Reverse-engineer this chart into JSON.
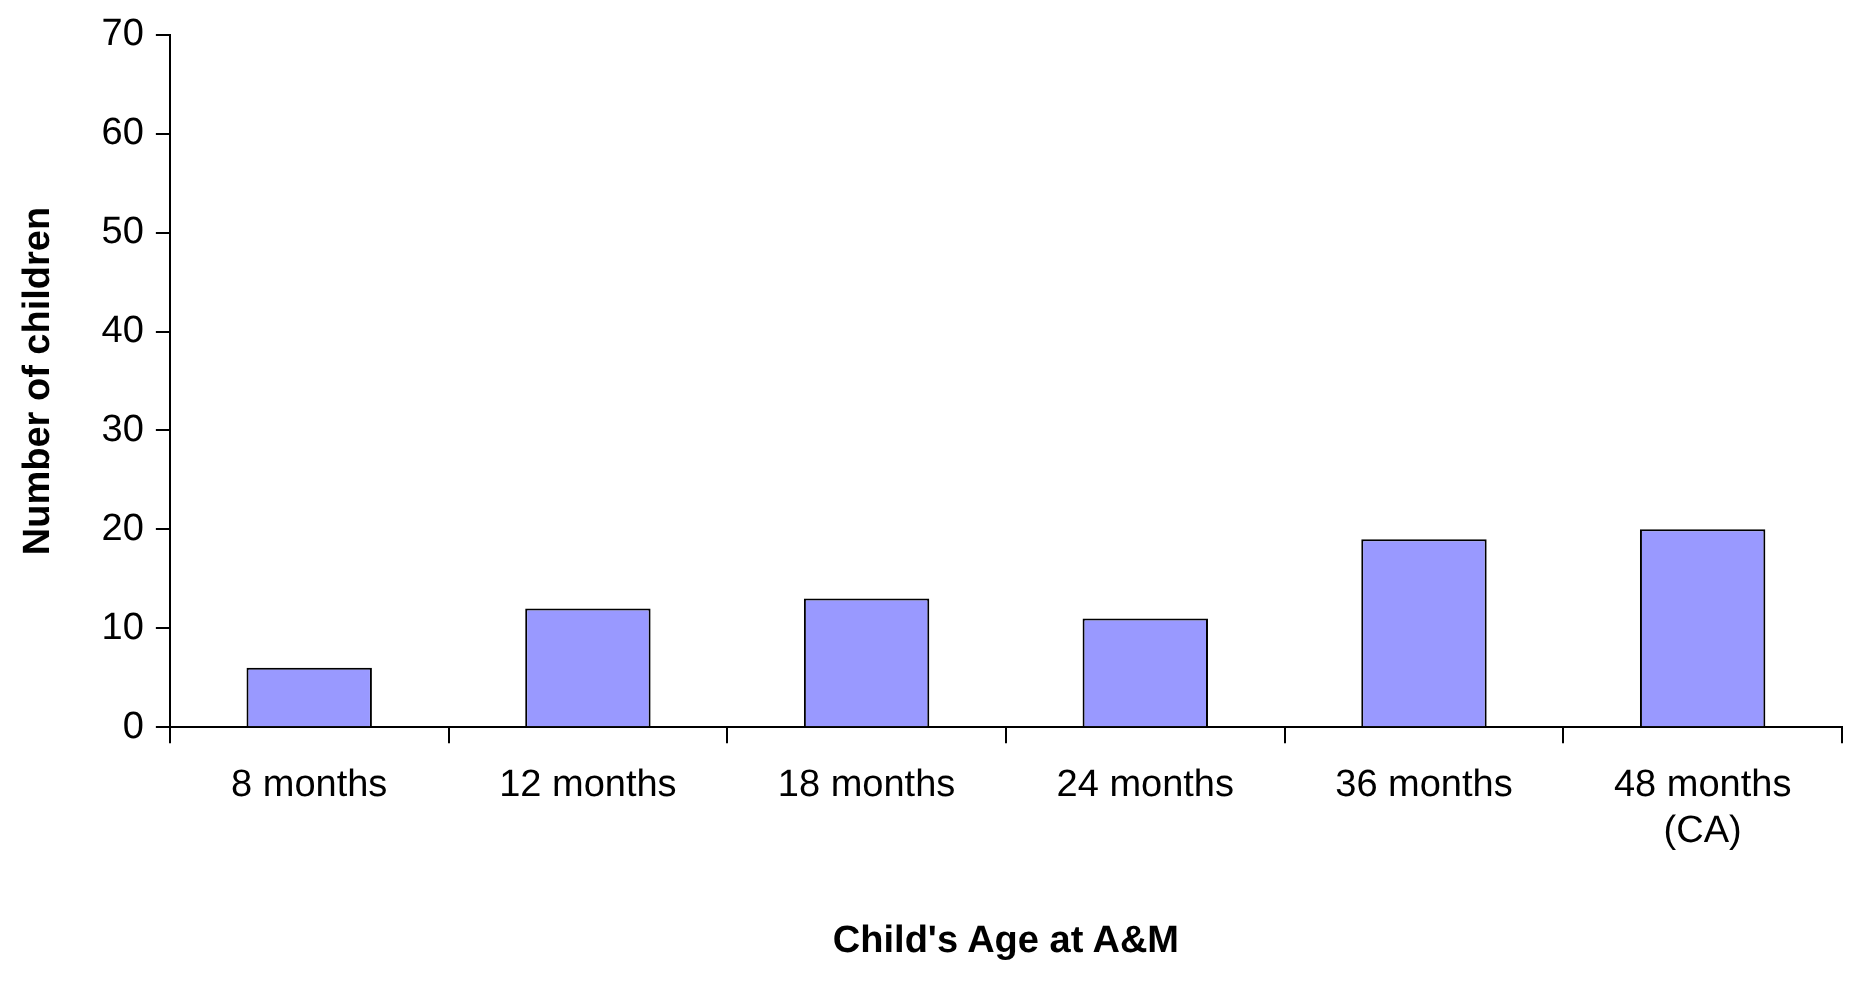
{
  "chart_data": {
    "type": "bar",
    "xlabel": "Child's Age at A&M",
    "ylabel": "Number of children",
    "categories": [
      "8 months",
      "12 months",
      "18 months",
      "24 months",
      "36 months",
      "48 months\n(CA)"
    ],
    "values": [
      6,
      12,
      13,
      11,
      19,
      20
    ],
    "color": "#9999ff",
    "ylim": [
      0,
      70
    ],
    "yticks": [
      0,
      10,
      20,
      30,
      40,
      50,
      60,
      70
    ],
    "grid": false,
    "legend": false
  }
}
